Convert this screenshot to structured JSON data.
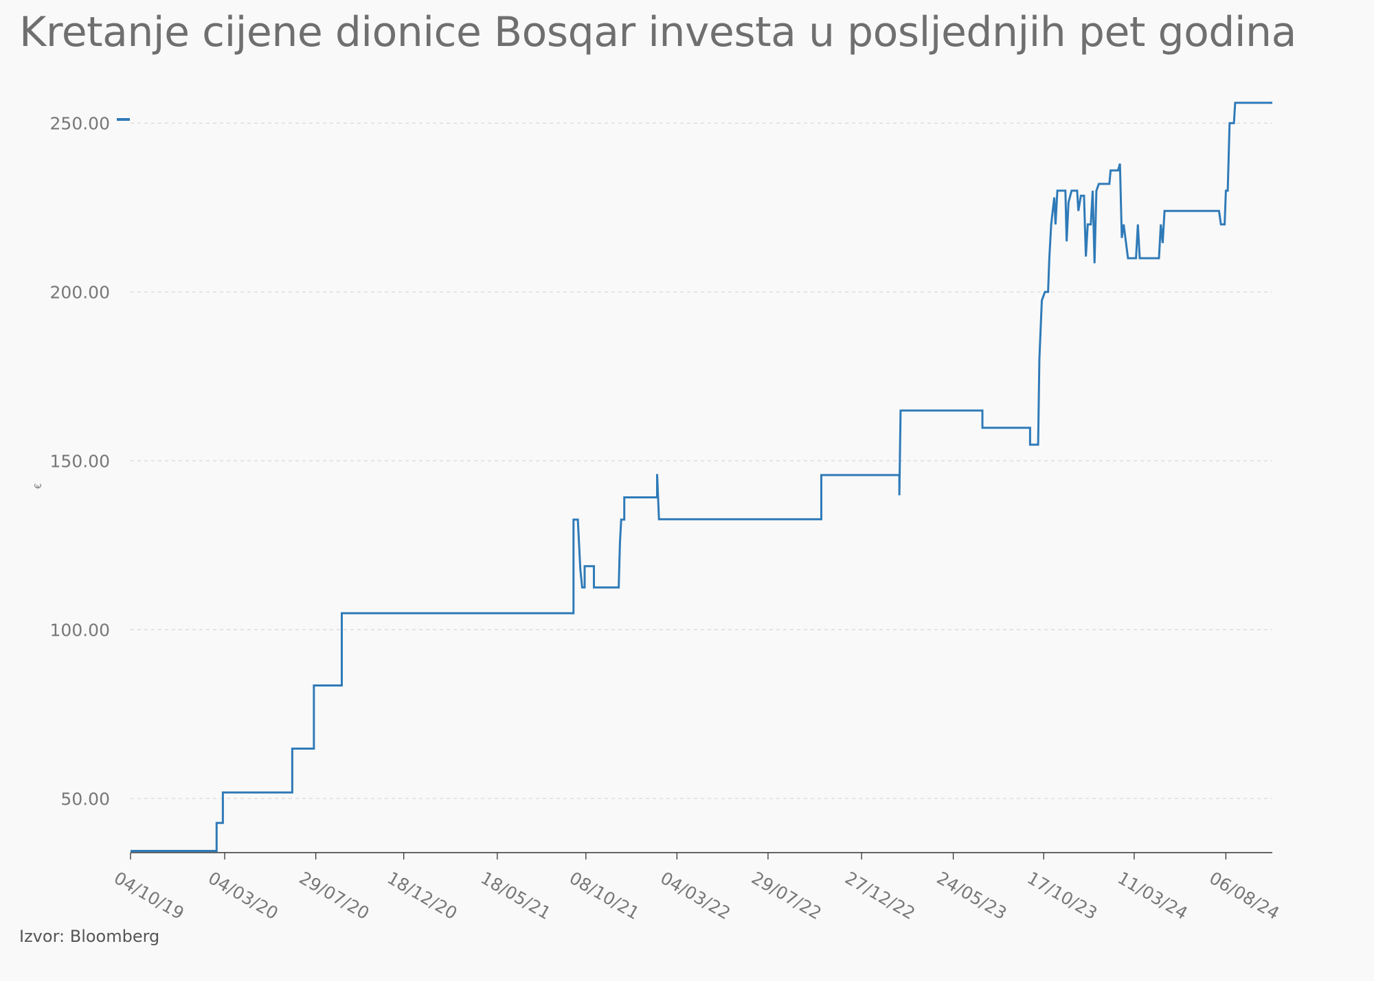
{
  "title": "Kretanje cijene dionice Bosqar investa u posljednjih pet godina",
  "source": "Izvor: Bloomberg",
  "colors": {
    "line": "#2f7ab8",
    "grid": "#d9d9d9",
    "axis": "#333333",
    "text": "#777777"
  },
  "chart_data": {
    "type": "line",
    "ylabel": "€",
    "ylim": [
      34,
      258
    ],
    "yticks": [
      50,
      100,
      150,
      200,
      250
    ],
    "ytick_labels": [
      "50.00",
      "100.00",
      "150.00",
      "200.00",
      "250.00"
    ],
    "xlim": [
      "2019-10-04",
      "2024-10-20"
    ],
    "xticks": [
      "2019-10-04",
      "2020-03-04",
      "2020-07-29",
      "2020-12-18",
      "2021-05-18",
      "2021-10-08",
      "2022-03-04",
      "2022-07-29",
      "2022-12-27",
      "2023-05-24",
      "2023-10-17",
      "2024-03-11",
      "2024-08-06"
    ],
    "xtick_labels": [
      "04/10/19",
      "04/03/20",
      "29/07/20",
      "18/12/20",
      "18/05/21",
      "08/10/21",
      "04/03/22",
      "29/07/22",
      "27/12/22",
      "24/05/23",
      "17/10/23",
      "11/03/24",
      "06/08/24"
    ],
    "grid": true,
    "series": [
      {
        "values": [
          [
            "2019-10-04",
            34.5
          ],
          [
            "2020-02-20",
            34.5
          ],
          [
            "2020-02-20",
            42.8
          ],
          [
            "2020-03-01",
            42.8
          ],
          [
            "2020-03-01",
            51.8
          ],
          [
            "2020-06-21",
            51.8
          ],
          [
            "2020-06-21",
            64.8
          ],
          [
            "2020-07-26",
            64.8
          ],
          [
            "2020-07-26",
            83.5
          ],
          [
            "2020-09-09",
            83.5
          ],
          [
            "2020-09-09",
            104.9
          ],
          [
            "2021-09-18",
            104.9
          ],
          [
            "2021-09-18",
            132.6
          ],
          [
            "2021-09-25",
            132.6
          ],
          [
            "2021-09-29",
            118
          ],
          [
            "2021-10-02",
            112.5
          ],
          [
            "2021-10-06",
            112.5
          ],
          [
            "2021-10-06",
            118.8
          ],
          [
            "2021-10-21",
            118.8
          ],
          [
            "2021-10-21",
            112.5
          ],
          [
            "2021-11-30",
            112.5
          ],
          [
            "2021-12-02",
            125.8
          ],
          [
            "2021-12-04",
            132.6
          ],
          [
            "2021-12-09",
            132.6
          ],
          [
            "2021-12-09",
            139.2
          ],
          [
            "2022-01-31",
            139.2
          ],
          [
            "2022-01-31",
            146.1
          ],
          [
            "2022-02-03",
            132.7
          ],
          [
            "2022-10-23",
            132.7
          ],
          [
            "2022-10-23",
            145.8
          ],
          [
            "2023-02-26",
            145.8
          ],
          [
            "2023-02-26",
            139.8
          ],
          [
            "2023-02-28",
            164.9
          ],
          [
            "2023-07-10",
            164.9
          ],
          [
            "2023-07-10",
            159.8
          ],
          [
            "2023-09-25",
            159.8
          ],
          [
            "2023-09-25",
            154.8
          ],
          [
            "2023-10-08",
            154.8
          ],
          [
            "2023-10-10",
            180.0
          ],
          [
            "2023-10-14",
            197.5
          ],
          [
            "2023-10-19",
            200.0
          ],
          [
            "2023-10-24",
            200.0
          ],
          [
            "2023-10-26",
            210.0
          ],
          [
            "2023-10-29",
            220.0
          ],
          [
            "2023-11-03",
            228.0
          ],
          [
            "2023-11-05",
            220.0
          ],
          [
            "2023-11-08",
            230.0
          ],
          [
            "2023-11-21",
            230.0
          ],
          [
            "2023-11-23",
            215.0
          ],
          [
            "2023-11-26",
            226.5
          ],
          [
            "2023-12-01",
            230.0
          ],
          [
            "2023-12-10",
            230.0
          ],
          [
            "2023-12-12",
            224.0
          ],
          [
            "2023-12-16",
            228.5
          ],
          [
            "2023-12-21",
            228.5
          ],
          [
            "2023-12-24",
            210.5
          ],
          [
            "2023-12-27",
            220.0
          ],
          [
            "2024-01-01",
            220.0
          ],
          [
            "2024-01-04",
            230.0
          ],
          [
            "2024-01-07",
            208.5
          ],
          [
            "2024-01-10",
            230.0
          ],
          [
            "2024-01-14",
            232.0
          ],
          [
            "2024-01-31",
            232.0
          ],
          [
            "2024-02-02",
            236.0
          ],
          [
            "2024-02-14",
            236.0
          ],
          [
            "2024-02-17",
            238.0
          ],
          [
            "2024-02-20",
            216.0
          ],
          [
            "2024-02-23",
            220.0
          ],
          [
            "2024-03-01",
            210.0
          ],
          [
            "2024-03-14",
            210.0
          ],
          [
            "2024-03-17",
            220.0
          ],
          [
            "2024-03-20",
            210.0
          ],
          [
            "2024-04-20",
            210.0
          ],
          [
            "2024-04-23",
            220.0
          ],
          [
            "2024-04-26",
            214.5
          ],
          [
            "2024-04-29",
            224.0
          ],
          [
            "2024-07-26",
            224.0
          ],
          [
            "2024-07-29",
            220.0
          ],
          [
            "2024-08-04",
            220.0
          ],
          [
            "2024-08-06",
            230.0
          ],
          [
            "2024-08-09",
            230.0
          ],
          [
            "2024-08-12",
            250.0
          ],
          [
            "2024-08-19",
            250.0
          ],
          [
            "2024-08-21",
            256.0
          ],
          [
            "2024-10-20",
            256.0
          ]
        ]
      }
    ]
  }
}
